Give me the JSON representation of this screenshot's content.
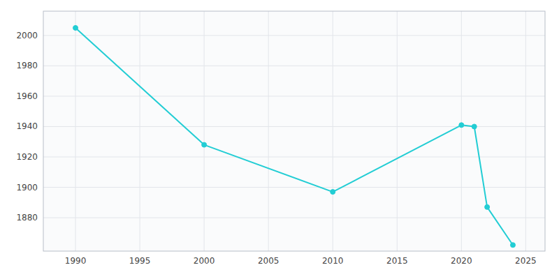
{
  "chart_data": {
    "type": "line",
    "x": [
      1990,
      2000,
      2010,
      2020,
      2021,
      2022,
      2024
    ],
    "values": [
      2005,
      1928,
      1897,
      1941,
      1940,
      1887,
      1862
    ],
    "color": "#22CDD4",
    "marker": "circle",
    "xlim": [
      1987.5,
      2026.5
    ],
    "ylim": [
      1858,
      2016
    ],
    "xticks": [
      1990,
      1995,
      2000,
      2005,
      2010,
      2015,
      2020,
      2025
    ],
    "yticks": [
      1880,
      1900,
      1920,
      1940,
      1960,
      1980,
      2000
    ],
    "grid": true
  }
}
